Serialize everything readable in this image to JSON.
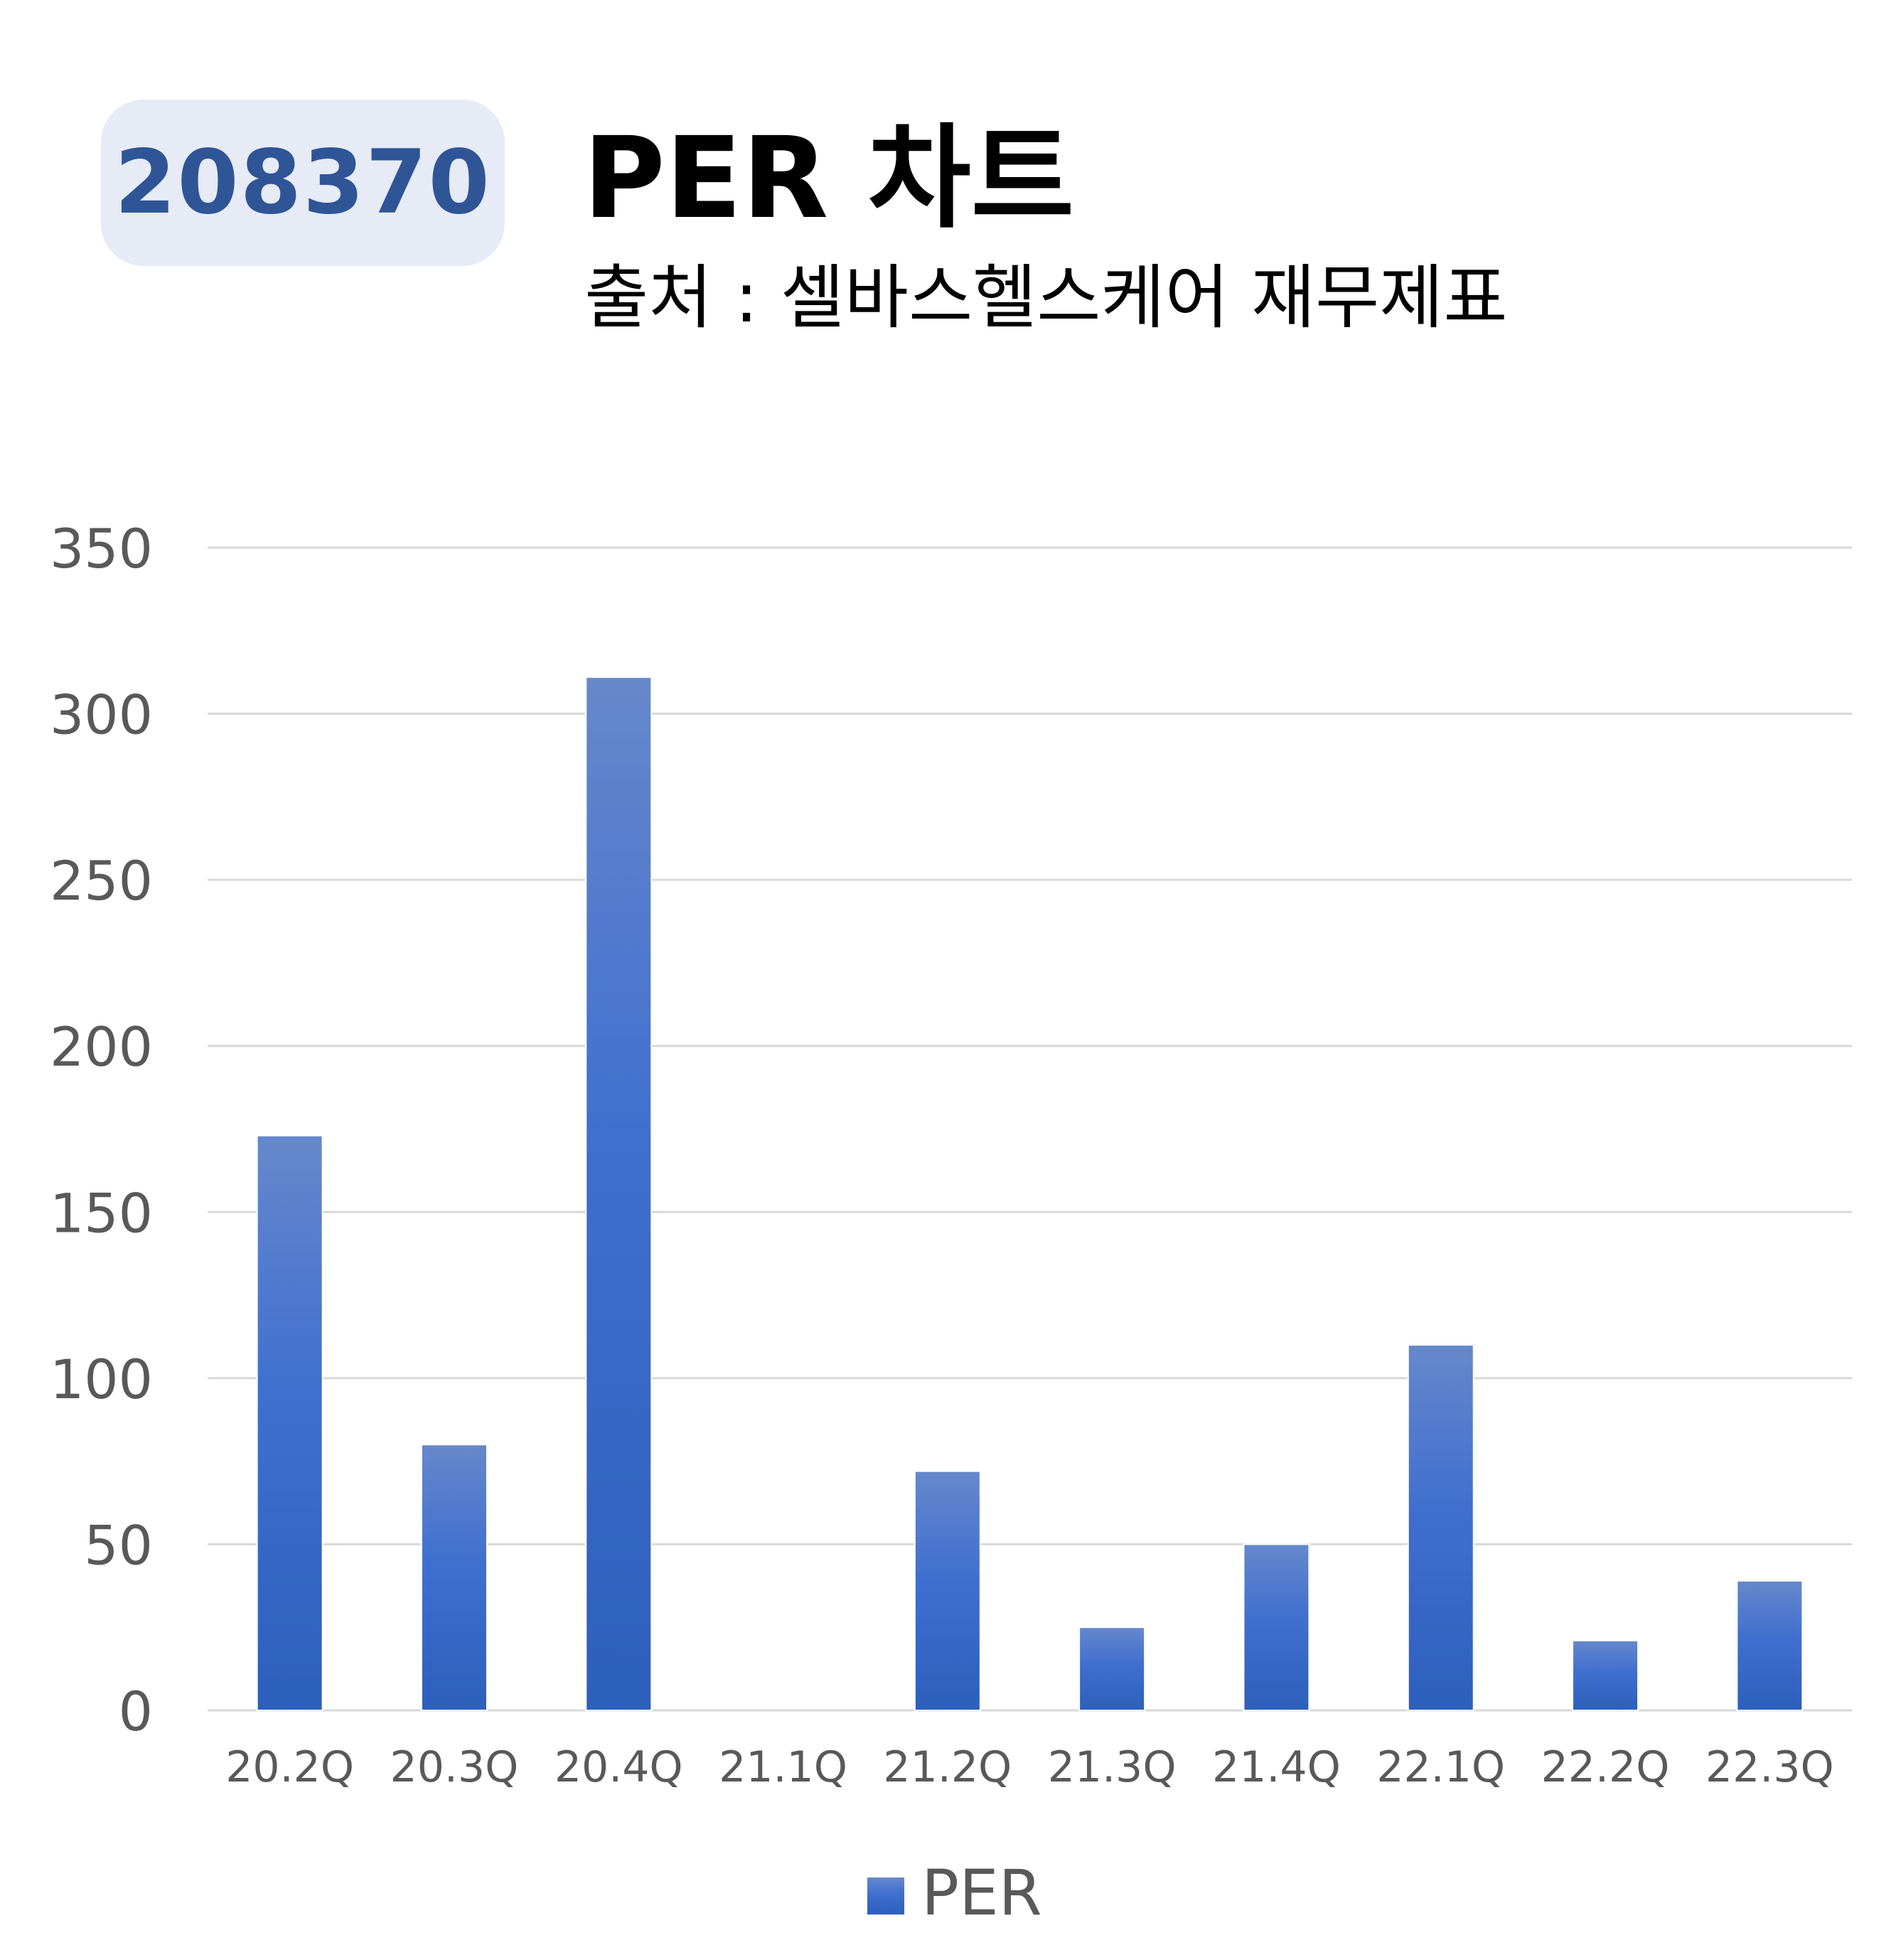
{
  "header": {
    "code": "208370",
    "title": "PER 차트",
    "subtitle": "출처 : 셀바스헬스케어 재무제표"
  },
  "colors": {
    "badge_bg": "#e6ebf5",
    "badge_text": "#2f5597",
    "bar_top": "#6688cc",
    "bar_bottom": "#2d5fbd",
    "gridline": "#d9d9d9",
    "tick_text": "#595959"
  },
  "chart_data": {
    "type": "bar",
    "categories": [
      "20.2Q",
      "20.3Q",
      "20.4Q",
      "21.1Q",
      "21.2Q",
      "21.3Q",
      "21.4Q",
      "22.1Q",
      "22.2Q",
      "22.3Q"
    ],
    "series": [
      {
        "name": "PER",
        "values": [
          173,
          80,
          311,
          0,
          72,
          25,
          50,
          110,
          21,
          39
        ]
      }
    ],
    "ylim": [
      0,
      350
    ],
    "yticks": [
      0,
      50,
      100,
      150,
      200,
      250,
      300,
      350
    ],
    "grid": true,
    "legend": "bottom-center"
  }
}
